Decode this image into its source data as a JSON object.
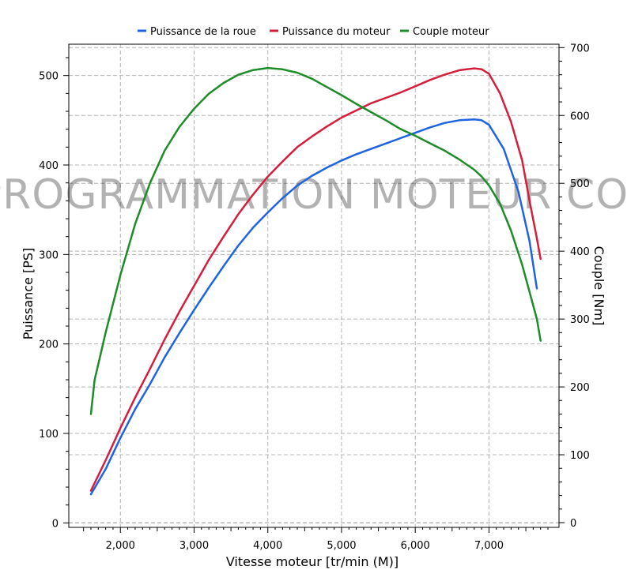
{
  "chart_data": {
    "type": "line",
    "title": "",
    "xlabel": "Vitesse moteur [tr/min (M)]",
    "ylabel_left": "Puissance [PS]",
    "ylabel_right": "Couple [Nm]",
    "xlim": [
      1300,
      7950
    ],
    "ylim_left": [
      -5,
      535
    ],
    "ylim_right": [
      -7,
      705
    ],
    "x_ticks": [
      2000,
      3000,
      4000,
      5000,
      6000,
      7000
    ],
    "x_tick_labels": [
      "2,000",
      "3,000",
      "4,000",
      "5,000",
      "6,000",
      "7,000"
    ],
    "y_ticks_left": [
      0,
      100,
      200,
      300,
      400,
      500
    ],
    "y_tick_labels_left": [
      "0",
      "100",
      "200",
      "300",
      "400",
      "500"
    ],
    "y_ticks_right": [
      0,
      100,
      200,
      300,
      400,
      500,
      600,
      700
    ],
    "y_tick_labels_right": [
      "0",
      "100",
      "200",
      "300",
      "400",
      "500",
      "600",
      "700"
    ],
    "grid": true,
    "legend_position": "top",
    "watermark": "REPROGRAMMATION MOTEUR CORSE",
    "series": [
      {
        "name": "Puissance de la roue",
        "color": "#1f63e0",
        "axis": "left",
        "points": [
          [
            1600,
            32
          ],
          [
            1800,
            60
          ],
          [
            2000,
            95
          ],
          [
            2200,
            127
          ],
          [
            2400,
            155
          ],
          [
            2600,
            185
          ],
          [
            2800,
            212
          ],
          [
            3000,
            238
          ],
          [
            3200,
            263
          ],
          [
            3400,
            287
          ],
          [
            3600,
            310
          ],
          [
            3800,
            330
          ],
          [
            4000,
            347
          ],
          [
            4200,
            363
          ],
          [
            4400,
            377
          ],
          [
            4600,
            388
          ],
          [
            4800,
            397
          ],
          [
            5000,
            405
          ],
          [
            5200,
            412
          ],
          [
            5400,
            418
          ],
          [
            5600,
            424
          ],
          [
            5800,
            430
          ],
          [
            6000,
            436
          ],
          [
            6200,
            442
          ],
          [
            6400,
            447
          ],
          [
            6600,
            450
          ],
          [
            6800,
            451
          ],
          [
            6900,
            450
          ],
          [
            7000,
            445
          ],
          [
            7200,
            418
          ],
          [
            7400,
            370
          ],
          [
            7550,
            315
          ],
          [
            7650,
            262
          ]
        ]
      },
      {
        "name": "Puissance du moteur",
        "color": "#d41e3c",
        "axis": "left",
        "points": [
          [
            1600,
            36
          ],
          [
            1800,
            70
          ],
          [
            2000,
            106
          ],
          [
            2200,
            140
          ],
          [
            2400,
            172
          ],
          [
            2600,
            205
          ],
          [
            2800,
            236
          ],
          [
            3000,
            265
          ],
          [
            3200,
            294
          ],
          [
            3400,
            320
          ],
          [
            3600,
            345
          ],
          [
            3800,
            367
          ],
          [
            4000,
            387
          ],
          [
            4200,
            404
          ],
          [
            4400,
            420
          ],
          [
            4600,
            432
          ],
          [
            4800,
            443
          ],
          [
            5000,
            453
          ],
          [
            5200,
            461
          ],
          [
            5400,
            469
          ],
          [
            5600,
            475
          ],
          [
            5800,
            481
          ],
          [
            6000,
            488
          ],
          [
            6200,
            495
          ],
          [
            6400,
            501
          ],
          [
            6600,
            506
          ],
          [
            6800,
            508
          ],
          [
            6900,
            507
          ],
          [
            7000,
            502
          ],
          [
            7150,
            480
          ],
          [
            7300,
            448
          ],
          [
            7450,
            405
          ],
          [
            7550,
            360
          ],
          [
            7650,
            318
          ],
          [
            7700,
            295
          ]
        ]
      },
      {
        "name": "Couple moteur",
        "color": "#1e8c28",
        "axis": "right",
        "points": [
          [
            1600,
            160
          ],
          [
            1650,
            210
          ],
          [
            1800,
            280
          ],
          [
            2000,
            365
          ],
          [
            2200,
            440
          ],
          [
            2400,
            500
          ],
          [
            2600,
            548
          ],
          [
            2800,
            583
          ],
          [
            3000,
            610
          ],
          [
            3200,
            632
          ],
          [
            3400,
            648
          ],
          [
            3600,
            660
          ],
          [
            3800,
            667
          ],
          [
            4000,
            670
          ],
          [
            4200,
            668
          ],
          [
            4400,
            663
          ],
          [
            4600,
            654
          ],
          [
            4800,
            642
          ],
          [
            5000,
            630
          ],
          [
            5200,
            617
          ],
          [
            5400,
            605
          ],
          [
            5600,
            593
          ],
          [
            5800,
            580
          ],
          [
            6000,
            570
          ],
          [
            6200,
            559
          ],
          [
            6400,
            548
          ],
          [
            6600,
            535
          ],
          [
            6800,
            520
          ],
          [
            6900,
            510
          ],
          [
            7000,
            497
          ],
          [
            7150,
            470
          ],
          [
            7300,
            430
          ],
          [
            7450,
            380
          ],
          [
            7550,
            340
          ],
          [
            7650,
            300
          ],
          [
            7700,
            268
          ]
        ]
      }
    ]
  }
}
